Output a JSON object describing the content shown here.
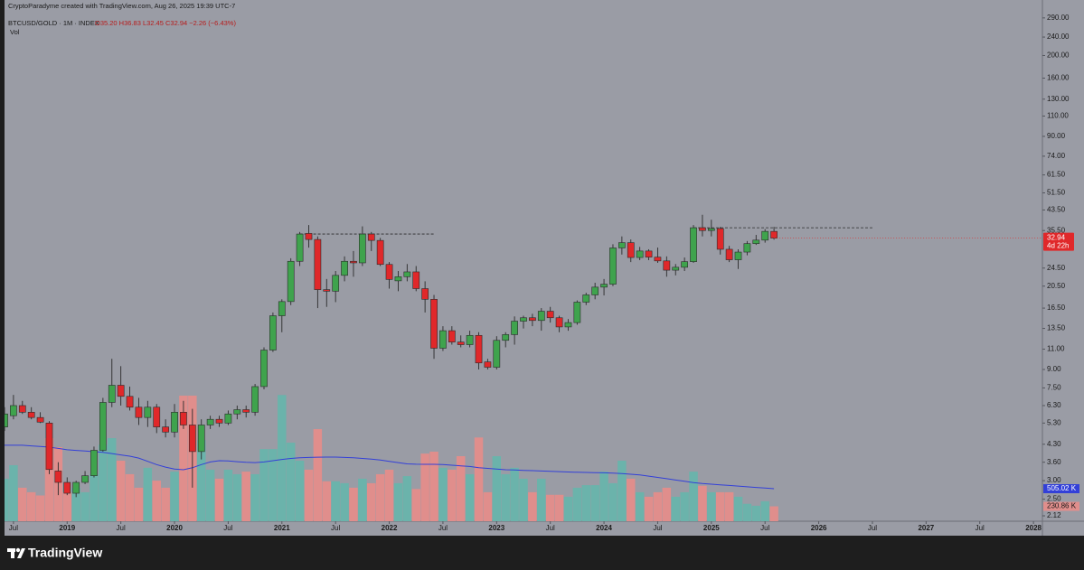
{
  "chart_data": {
    "type": "candlestick",
    "credit": "CryptoParadyme created with TradingView.com, Aug 26, 2025 19:39 UTC-7",
    "title": "BTCUSD/GOLD · 1M · INDEX",
    "ohlc": "O35.20 H36.83 L32.45 C32.94 −2.26 (−6.43%)",
    "volume_name": "Vol",
    "countdown": "4d 22h",
    "volume_ma_label": "505.02 K",
    "volume_label": "230.86 K",
    "log_scale": true,
    "grid": false,
    "up_color": "#3fa34d",
    "down_color": "#e0282a",
    "volume_up_color": "#6bb3ab",
    "volume_down_color": "#e08e8c",
    "volume_ma_color": "#3340d8",
    "x": [
      "2018-06",
      "2018-07",
      "2018-08",
      "2018-09",
      "2018-10",
      "2018-11",
      "2018-12",
      "2019-01",
      "2019-02",
      "2019-03",
      "2019-04",
      "2019-05",
      "2019-06",
      "2019-07",
      "2019-08",
      "2019-09",
      "2019-10",
      "2019-11",
      "2019-12",
      "2020-01",
      "2020-02",
      "2020-03",
      "2020-04",
      "2020-05",
      "2020-06",
      "2020-07",
      "2020-08",
      "2020-09",
      "2020-10",
      "2020-11",
      "2020-12",
      "2021-01",
      "2021-02",
      "2021-03",
      "2021-04",
      "2021-05",
      "2021-06",
      "2021-07",
      "2021-08",
      "2021-09",
      "2021-10",
      "2021-11",
      "2021-12",
      "2022-01",
      "2022-02",
      "2022-03",
      "2022-04",
      "2022-05",
      "2022-06",
      "2022-07",
      "2022-08",
      "2022-09",
      "2022-10",
      "2022-11",
      "2022-12",
      "2023-01",
      "2023-02",
      "2023-03",
      "2023-04",
      "2023-05",
      "2023-06",
      "2023-07",
      "2023-08",
      "2023-09",
      "2023-10",
      "2023-11",
      "2023-12",
      "2024-01",
      "2024-02",
      "2024-03",
      "2024-04",
      "2024-05",
      "2024-06",
      "2024-07",
      "2024-08",
      "2024-09",
      "2024-10",
      "2024-11",
      "2024-12",
      "2025-01",
      "2025-02",
      "2025-03",
      "2025-04",
      "2025-05",
      "2025-06",
      "2025-07",
      "2025-08"
    ],
    "open": [
      5.1,
      5.7,
      6.3,
      5.9,
      5.6,
      5.3,
      3.3,
      2.95,
      2.65,
      2.95,
      3.15,
      4.05,
      6.5,
      7.7,
      6.9,
      6.2,
      5.6,
      6.2,
      5.1,
      4.85,
      5.9,
      5.2,
      4.0,
      5.2,
      5.5,
      5.3,
      5.8,
      6.05,
      5.9,
      7.6,
      10.9,
      15.3,
      17.6,
      26.2,
      34.5,
      32.5,
      19.8,
      19.5,
      22.8,
      26.2,
      25.8,
      34.3,
      32.2,
      25.4,
      21.6,
      22.5,
      23.6,
      20.0,
      18.0,
      11.1,
      13.2,
      11.8,
      11.5,
      12.6,
      9.7,
      9.2,
      12.0,
      12.7,
      14.5,
      15.0,
      14.6,
      16.0,
      15.0,
      13.7,
      14.3,
      17.5,
      18.8,
      20.3,
      20.9,
      29.9,
      31.5,
      27.2,
      29.0,
      27.3,
      26.3,
      24.0,
      24.7,
      26.1,
      36.5,
      35.5,
      36.2,
      29.5,
      26.6,
      28.7,
      31.2,
      32.3,
      35.2
    ],
    "high": [
      6.2,
      7.0,
      6.6,
      6.2,
      5.9,
      5.4,
      3.6,
      3.1,
      3.0,
      3.3,
      4.2,
      6.8,
      10.0,
      9.3,
      7.6,
      6.8,
      6.6,
      6.4,
      5.5,
      6.4,
      6.6,
      6.1,
      5.5,
      5.7,
      5.7,
      6.0,
      6.3,
      6.3,
      7.8,
      11.2,
      15.8,
      18.0,
      27.0,
      35.0,
      37.5,
      33.5,
      22.0,
      23.8,
      27.5,
      29.0,
      37.0,
      35.0,
      33.0,
      26.0,
      23.8,
      25.5,
      25.0,
      21.5,
      18.8,
      13.8,
      13.8,
      12.6,
      13.2,
      13.0,
      10.0,
      12.5,
      13.0,
      15.2,
      15.3,
      15.6,
      16.5,
      16.7,
      15.3,
      14.8,
      17.8,
      19.2,
      21.2,
      22.0,
      31.0,
      33.5,
      32.5,
      30.2,
      29.5,
      30.0,
      27.5,
      25.5,
      27.2,
      37.5,
      41.5,
      39.5,
      36.8,
      30.5,
      29.5,
      32.0,
      34.0,
      36.0,
      36.83
    ],
    "low": [
      4.9,
      5.5,
      5.8,
      5.5,
      5.3,
      3.2,
      2.6,
      2.6,
      2.55,
      2.9,
      3.1,
      4.0,
      6.2,
      6.3,
      6.0,
      5.2,
      5.1,
      4.8,
      4.6,
      4.6,
      5.0,
      2.8,
      3.7,
      5.0,
      5.1,
      5.2,
      5.5,
      5.6,
      5.7,
      7.4,
      10.7,
      13.0,
      17.0,
      25.0,
      30.0,
      16.5,
      16.7,
      17.5,
      21.5,
      22.5,
      25.0,
      29.0,
      25.0,
      20.0,
      19.5,
      21.5,
      19.5,
      15.8,
      10.0,
      10.8,
      11.5,
      11.2,
      11.2,
      9.0,
      9.0,
      9.0,
      11.2,
      11.5,
      13.5,
      13.8,
      13.2,
      14.3,
      13.0,
      13.2,
      14.0,
      17.0,
      18.0,
      18.7,
      20.5,
      28.0,
      26.0,
      26.5,
      26.5,
      25.8,
      22.5,
      22.8,
      23.8,
      25.8,
      33.5,
      33.5,
      28.0,
      26.0,
      24.3,
      27.8,
      30.8,
      31.5,
      32.45
    ],
    "close": [
      5.8,
      6.3,
      5.9,
      5.6,
      5.35,
      3.35,
      2.95,
      2.65,
      2.95,
      3.15,
      4.05,
      6.5,
      7.7,
      6.9,
      6.2,
      5.6,
      6.2,
      5.1,
      4.85,
      5.9,
      5.2,
      4.0,
      5.2,
      5.5,
      5.3,
      5.8,
      6.05,
      5.9,
      7.6,
      10.9,
      15.3,
      17.6,
      26.2,
      34.3,
      32.5,
      19.8,
      19.5,
      22.8,
      26.2,
      25.8,
      34.3,
      32.2,
      25.4,
      21.9,
      22.5,
      23.6,
      20.0,
      18.0,
      11.1,
      13.2,
      11.8,
      11.5,
      12.6,
      9.6,
      9.2,
      12.0,
      12.7,
      14.5,
      15.0,
      14.6,
      16.0,
      15.0,
      13.7,
      14.3,
      17.5,
      18.8,
      20.3,
      20.9,
      29.9,
      31.5,
      27.2,
      29.0,
      27.3,
      26.3,
      24.0,
      24.7,
      26.1,
      36.5,
      35.5,
      36.2,
      29.5,
      26.6,
      28.7,
      31.2,
      32.3,
      35.2,
      32.94
    ],
    "volume": [
      660,
      870,
      520,
      450,
      400,
      1290,
      1150,
      450,
      520,
      450,
      730,
      1190,
      1290,
      940,
      730,
      520,
      830,
      630,
      520,
      770,
      1950,
      1950,
      1260,
      800,
      660,
      800,
      730,
      770,
      730,
      1120,
      1120,
      1960,
      1220,
      940,
      800,
      1430,
      620,
      620,
      590,
      520,
      660,
      590,
      730,
      800,
      590,
      700,
      500,
      1050,
      1080,
      830,
      800,
      1010,
      730,
      1300,
      450,
      1010,
      730,
      830,
      660,
      450,
      660,
      410,
      410,
      380,
      520,
      560,
      560,
      770,
      590,
      940,
      660,
      450,
      380,
      450,
      520,
      380,
      450,
      770,
      550,
      450,
      450,
      450,
      380,
      270,
      240,
      310,
      230.86
    ],
    "volume_ma": [
      1180,
      1180,
      1180,
      1170,
      1160,
      1150,
      1130,
      1110,
      1100,
      1090,
      1080,
      1070,
      1050,
      1030,
      1010,
      980,
      930,
      880,
      840,
      810,
      800,
      830,
      880,
      920,
      940,
      935,
      925,
      915,
      910,
      920,
      940,
      960,
      975,
      985,
      990,
      995,
      996,
      996,
      990,
      985,
      975,
      965,
      950,
      930,
      910,
      890,
      885,
      884,
      884,
      880,
      870,
      860,
      850,
      830,
      820,
      810,
      800,
      795,
      790,
      785,
      780,
      775,
      770,
      765,
      760,
      758,
      755,
      752,
      748,
      740,
      730,
      720,
      700,
      680,
      660,
      640,
      620,
      600,
      585,
      575,
      565,
      555,
      545,
      535,
      525,
      515,
      505.02
    ],
    "levels": [
      {
        "value": 34.3,
        "start": "2021-03",
        "end": "2022-06"
      },
      {
        "value": 36.5,
        "start": "2024-11",
        "end": "2026-07"
      }
    ],
    "xlim": [
      "2018-06",
      "2028-02"
    ],
    "ylim": [
      2.01,
      311
    ],
    "volume_ylim": [
      0,
      7925
    ],
    "yticks": [
      {
        "value": 290,
        "label": "290.00"
      },
      {
        "value": 240,
        "label": "240.00"
      },
      {
        "value": 200,
        "label": "200.00"
      },
      {
        "value": 160,
        "label": "160.00"
      },
      {
        "value": 130,
        "label": "130.00"
      },
      {
        "value": 110,
        "label": "110.00"
      },
      {
        "value": 90,
        "label": "90.00"
      },
      {
        "value": 74,
        "label": "74.00"
      },
      {
        "value": 61.5,
        "label": "61.50"
      },
      {
        "value": 51.5,
        "label": "51.50"
      },
      {
        "value": 43.5,
        "label": "43.50"
      },
      {
        "value": 35.5,
        "label": "35.50"
      },
      {
        "value": 24.5,
        "label": "24.50"
      },
      {
        "value": 20.5,
        "label": "20.50"
      },
      {
        "value": 16.5,
        "label": "16.50"
      },
      {
        "value": 13.5,
        "label": "13.50"
      },
      {
        "value": 11,
        "label": "11.00"
      },
      {
        "value": 9,
        "label": "9.00"
      },
      {
        "value": 7.5,
        "label": "7.50"
      },
      {
        "value": 6.3,
        "label": "6.30"
      },
      {
        "value": 5.3,
        "label": "5.30"
      },
      {
        "value": 4.3,
        "label": "4.30"
      },
      {
        "value": 3.6,
        "label": "3.60"
      },
      {
        "value": 3,
        "label": "3.00"
      },
      {
        "value": 2.5,
        "label": "2.50"
      },
      {
        "value": 2.12,
        "label": "2.12"
      }
    ],
    "xticks": [
      {
        "value": "2018-07",
        "label": "Jul"
      },
      {
        "value": "2019-01",
        "label": "2019"
      },
      {
        "value": "2019-07",
        "label": "Jul"
      },
      {
        "value": "2020-01",
        "label": "2020"
      },
      {
        "value": "2020-07",
        "label": "Jul"
      },
      {
        "value": "2021-01",
        "label": "2021"
      },
      {
        "value": "2021-07",
        "label": "Jul"
      },
      {
        "value": "2022-01",
        "label": "2022"
      },
      {
        "value": "2022-07",
        "label": "Jul"
      },
      {
        "value": "2023-01",
        "label": "2023"
      },
      {
        "value": "2023-07",
        "label": "Jul"
      },
      {
        "value": "2024-01",
        "label": "2024"
      },
      {
        "value": "2024-07",
        "label": "Jul"
      },
      {
        "value": "2025-01",
        "label": "2025"
      },
      {
        "value": "2025-07",
        "label": "Jul"
      },
      {
        "value": "2026-01",
        "label": "2026"
      },
      {
        "value": "2026-07",
        "label": "Jul"
      },
      {
        "value": "2027-01",
        "label": "2027"
      },
      {
        "value": "2027-07",
        "label": "Jul"
      },
      {
        "value": "2028-01",
        "label": "2028"
      }
    ]
  },
  "footer": {
    "brand": "TradingView"
  }
}
